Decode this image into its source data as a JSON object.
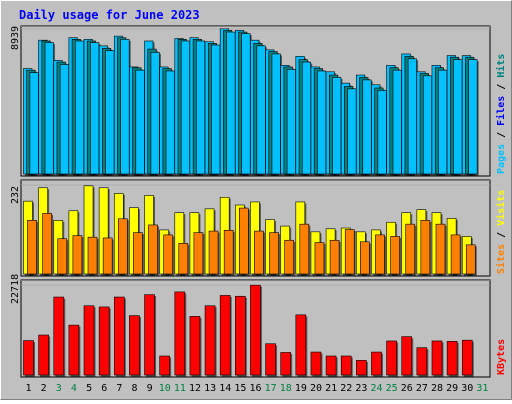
{
  "title": "Daily usage for June 2023",
  "colors": {
    "frame_bg": "#c0c0c0",
    "panel_bg": "#c0c0c0",
    "title": "#0000ff",
    "hits": "#00c0ff",
    "files": "#008080",
    "pages": "#00c0ff",
    "visits": "#ffff00",
    "sites": "#ff8000",
    "kbytes": "#ff0000",
    "weekday_label": "#000000",
    "weekend_label": "#008040"
  },
  "chart_data": [
    {
      "type": "bar",
      "panel": "hits-files-pages",
      "y_axis_max_label": "8939",
      "ylim": [
        0,
        9000
      ],
      "right_label_parts": [
        {
          "text": "Pages",
          "color": "#00c0ff"
        },
        {
          "text": " / ",
          "color": "#000000"
        },
        {
          "text": "Files",
          "color": "#0000ff"
        },
        {
          "text": " / ",
          "color": "#000000"
        },
        {
          "text": "Hits",
          "color": "#008080"
        }
      ],
      "categories": [
        "1",
        "2",
        "3",
        "4",
        "5",
        "6",
        "7",
        "8",
        "9",
        "10",
        "11",
        "12",
        "13",
        "14",
        "15",
        "16",
        "17",
        "18",
        "19",
        "20",
        "21",
        "22",
        "23",
        "24",
        "25",
        "26",
        "27",
        "28",
        "29",
        "30",
        "31"
      ],
      "series": [
        {
          "name": "Hits",
          "values": [
            6500,
            8250,
            7000,
            8400,
            8300,
            7900,
            8500,
            6600,
            8200,
            6600,
            8350,
            8400,
            8150,
            8950,
            8850,
            8250,
            7650,
            6700,
            7250,
            6600,
            6300,
            5600,
            6100,
            5500,
            6700,
            7400,
            6300,
            6700,
            7300,
            7300,
            0
          ]
        },
        {
          "name": "Files",
          "values": [
            6400,
            8200,
            6900,
            8300,
            8200,
            7750,
            8400,
            6550,
            7700,
            6500,
            8300,
            8300,
            8050,
            8850,
            8750,
            8050,
            7550,
            6600,
            7050,
            6500,
            6100,
            5400,
            5950,
            5300,
            6550,
            7250,
            6200,
            6550,
            7200,
            7200,
            0
          ]
        },
        {
          "name": "Pages",
          "values": [
            6250,
            8100,
            6750,
            8200,
            8100,
            7600,
            8300,
            6400,
            7500,
            6350,
            8200,
            8200,
            7950,
            8750,
            8650,
            7900,
            7400,
            6450,
            6900,
            6350,
            5950,
            5250,
            5800,
            5150,
            6400,
            7100,
            6050,
            6400,
            7050,
            7050,
            0
          ]
        }
      ]
    },
    {
      "type": "bar",
      "panel": "visits-sites",
      "y_axis_max_label": "232",
      "ylim": [
        0,
        240
      ],
      "right_label_parts": [
        {
          "text": "Sites",
          "color": "#ff8000"
        },
        {
          "text": " / ",
          "color": "#000000"
        },
        {
          "text": "Visits",
          "color": "#ffff00"
        }
      ],
      "categories": [
        "1",
        "2",
        "3",
        "4",
        "5",
        "6",
        "7",
        "8",
        "9",
        "10",
        "11",
        "12",
        "13",
        "14",
        "15",
        "16",
        "17",
        "18",
        "19",
        "20",
        "21",
        "22",
        "23",
        "24",
        "25",
        "26",
        "27",
        "28",
        "29",
        "30",
        "31"
      ],
      "series": [
        {
          "name": "Visits",
          "values": [
            190,
            225,
            140,
            165,
            230,
            225,
            210,
            173,
            205,
            115,
            160,
            160,
            170,
            200,
            180,
            188,
            142,
            125,
            188,
            110,
            118,
            120,
            110,
            115,
            135,
            160,
            168,
            160,
            145,
            98,
            0
          ]
        },
        {
          "name": "Sites",
          "values": [
            140,
            158,
            92,
            100,
            96,
            94,
            144,
            108,
            128,
            102,
            80,
            108,
            112,
            114,
            172,
            112,
            108,
            88,
            130,
            82,
            88,
            116,
            84,
            102,
            98,
            130,
            140,
            130,
            102,
            76,
            0
          ]
        }
      ]
    },
    {
      "type": "bar",
      "panel": "kbytes",
      "y_axis_max_label": "22718",
      "ylim": [
        0,
        23500
      ],
      "right_label_parts": [
        {
          "text": "KBytes",
          "color": "#ff0000"
        }
      ],
      "categories": [
        "1",
        "2",
        "3",
        "4",
        "5",
        "6",
        "7",
        "8",
        "9",
        "10",
        "11",
        "12",
        "13",
        "14",
        "15",
        "16",
        "17",
        "18",
        "19",
        "20",
        "21",
        "22",
        "23",
        "24",
        "25",
        "26",
        "27",
        "28",
        "29",
        "30",
        "31"
      ],
      "series": [
        {
          "name": "KBytes",
          "values": [
            8700,
            10100,
            19700,
            12600,
            17500,
            17200,
            19700,
            15000,
            20300,
            4800,
            21000,
            14800,
            17500,
            20100,
            19900,
            22700,
            7900,
            5700,
            15200,
            5800,
            4800,
            4800,
            3700,
            5800,
            8600,
            9700,
            6900,
            8600,
            8500,
            8800,
            0
          ]
        }
      ]
    }
  ]
}
